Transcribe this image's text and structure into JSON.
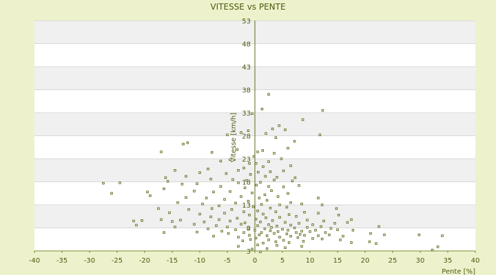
{
  "chart_data": {
    "type": "scatter",
    "title": "VITESSE vs PENTE",
    "xlabel": "Pente [%]",
    "ylabel": "Vitesse [km/h]",
    "xlim": [
      -40,
      40
    ],
    "ylim": [
      3,
      53
    ],
    "xticks": [
      "-40",
      "-35",
      "-30",
      "-25",
      "-20",
      "-15",
      "-10",
      "-5",
      "0",
      "5",
      "10",
      "15",
      "20",
      "25",
      "30",
      "35",
      "40"
    ],
    "yticks": [
      "53",
      "48",
      "43",
      "38",
      "33",
      "28",
      "23",
      "18",
      "13",
      "8",
      "3"
    ],
    "grid": true,
    "legend": "none",
    "colors": {
      "background": "#eef2cc",
      "band": "#f0f0f0",
      "plot": "#ffffff",
      "marker": "#5a6a1a",
      "text": "#4a5a10"
    },
    "series": [
      {
        "points": [
          [
            2.5,
            37
          ],
          [
            12.3,
            33.5
          ],
          [
            1.3,
            33.8
          ],
          [
            -0.5,
            32.8
          ],
          [
            8.7,
            31.5
          ],
          [
            4.4,
            30.2
          ],
          [
            3.2,
            29.5
          ],
          [
            5.5,
            29.3
          ],
          [
            -1.2,
            29.1
          ],
          [
            2.0,
            28.5
          ],
          [
            -5.0,
            28.2
          ],
          [
            -2.5,
            28.7
          ],
          [
            11.8,
            28.2
          ],
          [
            -12.2,
            26.5
          ],
          [
            -13.0,
            26.2
          ],
          [
            3.8,
            27.6
          ],
          [
            7.2,
            26.8
          ],
          [
            6.0,
            25.3
          ],
          [
            -3.2,
            25.0
          ],
          [
            1.4,
            24.8
          ],
          [
            -7.8,
            24.4
          ],
          [
            -17.0,
            24.5
          ],
          [
            3.5,
            24.2
          ],
          [
            0.5,
            24.5
          ],
          [
            -0.2,
            23.5
          ],
          [
            4.8,
            23.0
          ],
          [
            -4.5,
            22.8
          ],
          [
            2.5,
            22.4
          ],
          [
            -1.0,
            22.0
          ],
          [
            -6.2,
            22.5
          ],
          [
            0.2,
            22.0
          ],
          [
            6.5,
            21.5
          ],
          [
            -2.0,
            21.0
          ],
          [
            1.5,
            21.3
          ],
          [
            -8.5,
            20.8
          ],
          [
            -3.0,
            20.5
          ],
          [
            -14.5,
            20.5
          ],
          [
            -10.0,
            20.0
          ],
          [
            2.8,
            20.2
          ],
          [
            5.2,
            20.4
          ],
          [
            -5.2,
            19.8
          ],
          [
            0.6,
            20.1
          ],
          [
            -0.8,
            19.6
          ],
          [
            1.9,
            19.2
          ],
          [
            4.0,
            19.0
          ],
          [
            7.3,
            18.9
          ],
          [
            -12.5,
            19.2
          ],
          [
            -16.2,
            18.9
          ],
          [
            -8.0,
            18.6
          ],
          [
            -4.0,
            18.5
          ],
          [
            -1.5,
            18.3
          ],
          [
            3.5,
            18.4
          ],
          [
            6.8,
            18.2
          ],
          [
            1.0,
            17.9
          ],
          [
            -3.0,
            17.8
          ],
          [
            -27.5,
            17.7
          ],
          [
            -24.5,
            17.8
          ],
          [
            -15.8,
            18.1
          ],
          [
            -13.2,
            17.5
          ],
          [
            -10.5,
            17.6
          ],
          [
            0.3,
            17.3
          ],
          [
            2.5,
            17.0
          ],
          [
            5.2,
            16.9
          ],
          [
            8.0,
            17.2
          ],
          [
            -6.2,
            17.0
          ],
          [
            -1.8,
            16.7
          ],
          [
            -16.5,
            16.5
          ],
          [
            -19.5,
            15.8
          ],
          [
            -26.0,
            15.5
          ],
          [
            -11.0,
            16.0
          ],
          [
            -7.5,
            15.8
          ],
          [
            -4.5,
            15.9
          ],
          [
            3.0,
            16.1
          ],
          [
            -0.5,
            15.6
          ],
          [
            1.8,
            15.2
          ],
          [
            6.0,
            15.5
          ],
          [
            -2.5,
            14.8
          ],
          [
            -8.8,
            14.5
          ],
          [
            -19.0,
            15.0
          ],
          [
            -12.5,
            14.6
          ],
          [
            4.2,
            14.8
          ],
          [
            11.5,
            14.5
          ],
          [
            0.8,
            14.5
          ],
          [
            -5.5,
            14.2
          ],
          [
            2.2,
            14.0
          ],
          [
            -1.2,
            13.8
          ],
          [
            -14.0,
            13.5
          ],
          [
            -9.5,
            13.2
          ],
          [
            6.5,
            13.5
          ],
          [
            8.5,
            13.2
          ],
          [
            12.2,
            13.0
          ],
          [
            -3.5,
            13.4
          ],
          [
            1.2,
            13.1
          ],
          [
            4.5,
            13.0
          ],
          [
            -6.5,
            12.8
          ],
          [
            -0.3,
            12.6
          ],
          [
            -17.5,
            12.2
          ],
          [
            -12.0,
            12.0
          ],
          [
            -7.8,
            12.2
          ],
          [
            2.8,
            12.3
          ],
          [
            5.8,
            12.5
          ],
          [
            14.8,
            12.2
          ],
          [
            -4.2,
            12.0
          ],
          [
            0.5,
            11.7
          ],
          [
            3.8,
            11.5
          ],
          [
            -2.0,
            11.5
          ],
          [
            9.0,
            11.4
          ],
          [
            -15.5,
            11.3
          ],
          [
            -10.0,
            11.0
          ],
          [
            -5.5,
            11.2
          ],
          [
            1.5,
            11.0
          ],
          [
            6.2,
            10.9
          ],
          [
            11.5,
            11.2
          ],
          [
            -1.0,
            10.8
          ],
          [
            7.5,
            10.5
          ],
          [
            15.2,
            10.8
          ],
          [
            -8.0,
            10.4
          ],
          [
            4.5,
            10.3
          ],
          [
            2.0,
            10.2
          ],
          [
            -3.2,
            10.1
          ],
          [
            0.2,
            9.9
          ],
          [
            -17.0,
            9.8
          ],
          [
            -13.5,
            9.7
          ],
          [
            -6.5,
            9.8
          ],
          [
            3.2,
            9.6
          ],
          [
            9.5,
            9.7
          ],
          [
            12.5,
            9.5
          ],
          [
            17.5,
            9.8
          ],
          [
            -22.0,
            9.5
          ],
          [
            -20.5,
            9.6
          ],
          [
            -15.0,
            9.4
          ],
          [
            -9.2,
            9.3
          ],
          [
            -4.5,
            9.5
          ],
          [
            1.0,
            9.3
          ],
          [
            5.5,
            9.2
          ],
          [
            8.0,
            9.0
          ],
          [
            -1.8,
            9.1
          ],
          [
            14.5,
            9.0
          ],
          [
            16.8,
            9.2
          ],
          [
            -11.0,
            8.8
          ],
          [
            -2.5,
            8.8
          ],
          [
            2.5,
            8.7
          ],
          [
            6.5,
            8.6
          ],
          [
            10.5,
            8.7
          ],
          [
            -7.0,
            8.5
          ],
          [
            0.5,
            8.5
          ],
          [
            4.0,
            8.4
          ],
          [
            -21.5,
            8.6
          ],
          [
            -14.5,
            8.2
          ],
          [
            12.0,
            8.3
          ],
          [
            -5.0,
            8.2
          ],
          [
            3.0,
            8.1
          ],
          [
            7.2,
            8.0
          ],
          [
            9.5,
            8.1
          ],
          [
            22.5,
            8.3
          ],
          [
            -1.2,
            7.9
          ],
          [
            1.8,
            7.8
          ],
          [
            5.0,
            7.7
          ],
          [
            -8.5,
            7.8
          ],
          [
            13.8,
            7.9
          ],
          [
            -3.5,
            7.6
          ],
          [
            0.0,
            7.5
          ],
          [
            2.8,
            7.4
          ],
          [
            6.0,
            7.5
          ],
          [
            8.5,
            7.3
          ],
          [
            11.0,
            7.5
          ],
          [
            15.0,
            7.6
          ],
          [
            -6.0,
            7.3
          ],
          [
            4.2,
            7.2
          ],
          [
            17.8,
            7.5
          ],
          [
            -16.5,
            7.0
          ],
          [
            -10.5,
            7.1
          ],
          [
            -2.0,
            7.0
          ],
          [
            1.2,
            7.0
          ],
          [
            7.5,
            7.0
          ],
          [
            10.0,
            7.2
          ],
          [
            12.8,
            7.0
          ],
          [
            -4.8,
            6.8
          ],
          [
            3.5,
            6.8
          ],
          [
            5.8,
            6.7
          ],
          [
            8.2,
            6.6
          ],
          [
            0.8,
            6.5
          ],
          [
            -1.0,
            6.4
          ],
          [
            2.2,
            6.3
          ],
          [
            6.5,
            6.2
          ],
          [
            9.0,
            6.4
          ],
          [
            11.5,
            6.3
          ],
          [
            13.5,
            6.5
          ],
          [
            16.0,
            6.2
          ],
          [
            21.0,
            6.8
          ],
          [
            23.5,
            6.5
          ],
          [
            29.8,
            6.5
          ],
          [
            34.0,
            6.3
          ],
          [
            -7.5,
            6.2
          ],
          [
            4.5,
            6.0
          ],
          [
            -3.0,
            6.0
          ],
          [
            0.2,
            5.8
          ],
          [
            7.8,
            5.9
          ],
          [
            10.5,
            5.7
          ],
          [
            -0.8,
            5.5
          ],
          [
            2.5,
            5.4
          ],
          [
            5.2,
            5.3
          ],
          [
            12.2,
            5.6
          ],
          [
            15.5,
            5.4
          ],
          [
            -2.2,
            5.2
          ],
          [
            3.8,
            5.0
          ],
          [
            8.8,
            5.1
          ],
          [
            1.5,
            4.7
          ],
          [
            6.2,
            4.8
          ],
          [
            17.5,
            4.8
          ],
          [
            20.8,
            5.0
          ],
          [
            22.0,
            4.6
          ],
          [
            0.5,
            4.3
          ],
          [
            4.0,
            4.2
          ],
          [
            8.5,
            4.0
          ],
          [
            -3.0,
            4.0
          ],
          [
            33.2,
            3.9
          ],
          [
            32.2,
            3.2
          ],
          [
            -0.5,
            3.4
          ],
          [
            2.2,
            3.5
          ],
          [
            5.5,
            3.7
          ],
          [
            1.0,
            2.8
          ]
        ]
      }
    ]
  }
}
